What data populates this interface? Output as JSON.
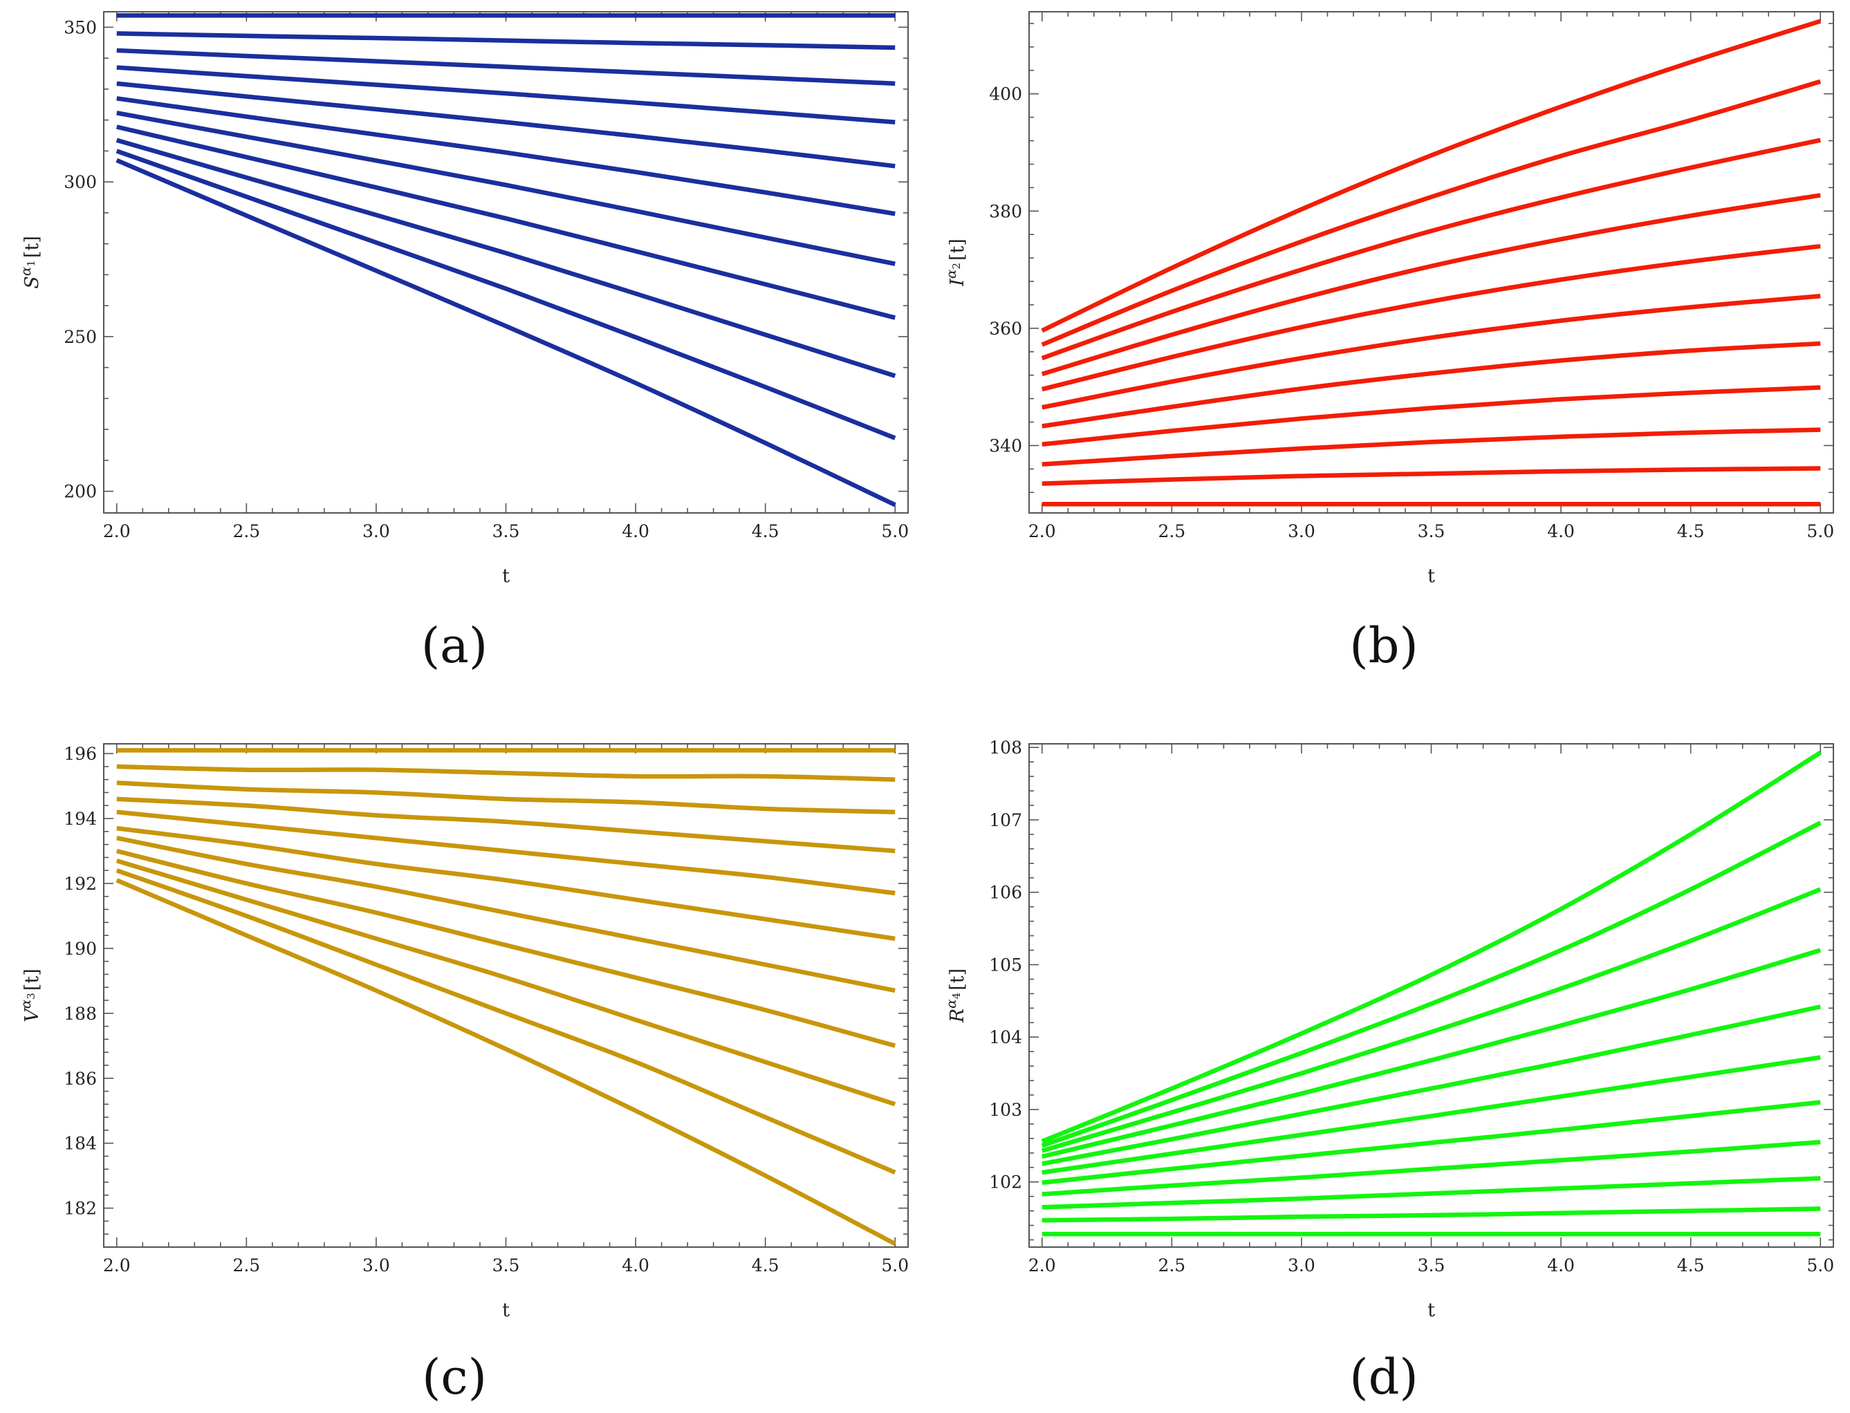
{
  "chart_data": [
    {
      "id": "a",
      "type": "line",
      "panel_label": "(a)",
      "xlabel": "t",
      "ylabel_base": "S",
      "ylabel_sup": "α",
      "ylabel_sub": "1",
      "ylabel_tail": "[t]",
      "color": "#1a2f9e",
      "xlim": [
        1.95,
        5.05
      ],
      "ylim": [
        193,
        355
      ],
      "x_ticks": [
        "2.0",
        "2.5",
        "3.0",
        "3.5",
        "4.0",
        "4.5",
        "5.0"
      ],
      "y_ticks": [
        "200",
        "250",
        "300",
        "350"
      ],
      "curve_t": [
        2.0,
        2.5,
        3.0,
        3.5,
        4.0,
        4.5,
        5.0
      ],
      "series": [
        {
          "name": "curve-1",
          "values": [
            353.8,
            353.8,
            353.8,
            353.8,
            353.8,
            353.8,
            353.8
          ]
        },
        {
          "name": "curve-2",
          "values": [
            348.0,
            347.2,
            346.5,
            345.7,
            344.9,
            344.2,
            343.4
          ]
        },
        {
          "name": "curve-3",
          "values": [
            342.5,
            340.7,
            339.0,
            337.2,
            335.4,
            333.6,
            331.8
          ]
        },
        {
          "name": "curve-4",
          "values": [
            337.0,
            334.2,
            331.4,
            328.6,
            325.6,
            322.5,
            319.3
          ]
        },
        {
          "name": "curve-5",
          "values": [
            331.8,
            327.6,
            323.5,
            319.3,
            314.8,
            310.1,
            305.1
          ]
        },
        {
          "name": "curve-6",
          "values": [
            327.0,
            321.1,
            315.3,
            309.5,
            303.2,
            296.6,
            289.7
          ]
        },
        {
          "name": "curve-7",
          "values": [
            322.3,
            314.6,
            306.9,
            299.0,
            290.6,
            282.0,
            273.5
          ]
        },
        {
          "name": "curve-8",
          "values": [
            317.8,
            308.0,
            298.2,
            288.2,
            277.6,
            266.9,
            256.1
          ]
        },
        {
          "name": "curve-9",
          "values": [
            313.5,
            301.4,
            289.3,
            277.0,
            263.9,
            250.6,
            237.3
          ]
        },
        {
          "name": "curve-10",
          "values": [
            310.0,
            295.2,
            280.4,
            265.5,
            249.8,
            233.7,
            217.2
          ]
        },
        {
          "name": "curve-11",
          "values": [
            307.0,
            289.1,
            271.3,
            253.4,
            235.0,
            215.6,
            195.6
          ]
        }
      ]
    },
    {
      "id": "b",
      "type": "line",
      "panel_label": "(b)",
      "xlabel": "t",
      "ylabel_base": "I",
      "ylabel_sup": "α",
      "ylabel_sub": "2",
      "ylabel_tail": "[t]",
      "color": "#f21d05",
      "xlim": [
        1.95,
        5.05
      ],
      "ylim": [
        328.5,
        414
      ],
      "x_ticks": [
        "2.0",
        "2.5",
        "3.0",
        "3.5",
        "4.0",
        "4.5",
        "5.0"
      ],
      "y_ticks": [
        "340",
        "360",
        "380",
        "400"
      ],
      "curve_t": [
        2.0,
        2.5,
        3.0,
        3.5,
        4.0,
        4.5,
        5.0
      ],
      "series": [
        {
          "name": "curve-1",
          "values": [
            330.0,
            330.0,
            330.0,
            330.0,
            330.0,
            330.0,
            330.0
          ]
        },
        {
          "name": "curve-2",
          "values": [
            333.5,
            334.2,
            334.8,
            335.2,
            335.6,
            335.9,
            336.1
          ]
        },
        {
          "name": "curve-3",
          "values": [
            336.8,
            338.2,
            339.5,
            340.6,
            341.5,
            342.2,
            342.7
          ]
        },
        {
          "name": "curve-4",
          "values": [
            340.2,
            342.5,
            344.6,
            346.4,
            347.9,
            349.0,
            349.9
          ]
        },
        {
          "name": "curve-5",
          "values": [
            343.3,
            346.6,
            349.7,
            352.3,
            354.5,
            356.2,
            357.4
          ]
        },
        {
          "name": "curve-6",
          "values": [
            346.5,
            350.9,
            354.9,
            358.4,
            361.3,
            363.6,
            365.5
          ]
        },
        {
          "name": "curve-7",
          "values": [
            349.6,
            355.1,
            360.2,
            364.6,
            368.3,
            371.4,
            374.0
          ]
        },
        {
          "name": "curve-8",
          "values": [
            352.2,
            358.9,
            365.1,
            370.6,
            375.2,
            379.2,
            382.7
          ]
        },
        {
          "name": "curve-9",
          "values": [
            354.9,
            362.8,
            370.0,
            376.6,
            382.3,
            387.4,
            392.1
          ]
        },
        {
          "name": "curve-10",
          "values": [
            357.2,
            366.4,
            374.8,
            382.4,
            389.4,
            395.5,
            402.1
          ]
        },
        {
          "name": "curve-11",
          "values": [
            359.6,
            370.3,
            380.3,
            389.5,
            397.8,
            405.4,
            412.4
          ]
        }
      ]
    },
    {
      "id": "c",
      "type": "line",
      "panel_label": "(c)",
      "xlabel": "t",
      "ylabel_base": "V",
      "ylabel_sup": "α",
      "ylabel_sub": "3",
      "ylabel_tail": "[t]",
      "color": "#c8960b",
      "xlim": [
        1.95,
        5.05
      ],
      "ylim": [
        180.8,
        196.3
      ],
      "x_ticks": [
        "2.0",
        "2.5",
        "3.0",
        "3.5",
        "4.0",
        "4.5",
        "5.0"
      ],
      "y_ticks": [
        "182",
        "184",
        "186",
        "188",
        "190",
        "192",
        "194",
        "196"
      ],
      "curve_t": [
        2.0,
        2.5,
        3.0,
        3.5,
        4.0,
        4.5,
        5.0
      ],
      "series": [
        {
          "name": "curve-1",
          "values": [
            196.1,
            196.1,
            196.1,
            196.1,
            196.1,
            196.1,
            196.1
          ]
        },
        {
          "name": "curve-2",
          "values": [
            195.6,
            195.5,
            195.5,
            195.4,
            195.3,
            195.3,
            195.2
          ]
        },
        {
          "name": "curve-3",
          "values": [
            195.1,
            194.9,
            194.8,
            194.6,
            194.5,
            194.3,
            194.2
          ]
        },
        {
          "name": "curve-4",
          "values": [
            194.6,
            194.4,
            194.1,
            193.9,
            193.6,
            193.3,
            193.0
          ]
        },
        {
          "name": "curve-5",
          "values": [
            194.2,
            193.8,
            193.4,
            193.0,
            192.6,
            192.2,
            191.7
          ]
        },
        {
          "name": "curve-6",
          "values": [
            193.7,
            193.2,
            192.6,
            192.1,
            191.5,
            190.9,
            190.3
          ]
        },
        {
          "name": "curve-7",
          "values": [
            193.4,
            192.6,
            191.9,
            191.1,
            190.3,
            189.5,
            188.7
          ]
        },
        {
          "name": "curve-8",
          "values": [
            193.0,
            192.0,
            191.1,
            190.1,
            189.1,
            188.1,
            187.0
          ]
        },
        {
          "name": "curve-9",
          "values": [
            192.7,
            191.5,
            190.3,
            189.1,
            187.8,
            186.5,
            185.2
          ]
        },
        {
          "name": "curve-10",
          "values": [
            192.4,
            191.0,
            189.5,
            188.0,
            186.5,
            184.8,
            183.1
          ]
        },
        {
          "name": "curve-11",
          "values": [
            192.1,
            190.4,
            188.7,
            186.9,
            185.0,
            183.0,
            180.9
          ]
        }
      ]
    },
    {
      "id": "d",
      "type": "line",
      "panel_label": "(d)",
      "xlabel": "t",
      "ylabel_base": "R",
      "ylabel_sup": "α",
      "ylabel_sub": "4",
      "ylabel_tail": "[t]",
      "color": "#13f50f",
      "xlim": [
        1.95,
        5.05
      ],
      "ylim": [
        101.1,
        108.05
      ],
      "x_ticks": [
        "2.0",
        "2.5",
        "3.0",
        "3.5",
        "4.0",
        "4.5",
        "5.0"
      ],
      "y_ticks": [
        "102",
        "103",
        "104",
        "105",
        "106",
        "107",
        "108"
      ],
      "curve_t": [
        2.0,
        2.5,
        3.0,
        3.5,
        4.0,
        4.5,
        5.0
      ],
      "series": [
        {
          "name": "curve-1",
          "values": [
            101.28,
            101.28,
            101.28,
            101.28,
            101.28,
            101.28,
            101.28
          ]
        },
        {
          "name": "curve-2",
          "values": [
            101.47,
            101.49,
            101.52,
            101.54,
            101.57,
            101.6,
            101.63
          ]
        },
        {
          "name": "curve-3",
          "values": [
            101.65,
            101.71,
            101.77,
            101.84,
            101.91,
            101.98,
            102.05
          ]
        },
        {
          "name": "curve-4",
          "values": [
            101.83,
            101.95,
            102.06,
            102.18,
            102.3,
            102.42,
            102.55
          ]
        },
        {
          "name": "curve-5",
          "values": [
            101.99,
            102.18,
            102.36,
            102.54,
            102.72,
            102.91,
            103.1
          ]
        },
        {
          "name": "curve-6",
          "values": [
            102.13,
            102.39,
            102.65,
            102.91,
            103.18,
            103.45,
            103.72
          ]
        },
        {
          "name": "curve-7",
          "values": [
            102.25,
            102.59,
            102.94,
            103.29,
            103.65,
            104.03,
            104.42
          ]
        },
        {
          "name": "curve-8",
          "values": [
            102.35,
            102.78,
            103.22,
            103.68,
            104.16,
            104.66,
            105.2
          ]
        },
        {
          "name": "curve-9",
          "values": [
            102.43,
            102.96,
            103.5,
            104.07,
            104.67,
            105.33,
            106.04
          ]
        },
        {
          "name": "curve-10",
          "values": [
            102.5,
            103.13,
            103.78,
            104.46,
            105.2,
            106.04,
            106.96
          ]
        },
        {
          "name": "curve-11",
          "values": [
            102.56,
            103.29,
            104.05,
            104.86,
            105.77,
            106.8,
            107.93
          ]
        }
      ]
    }
  ]
}
